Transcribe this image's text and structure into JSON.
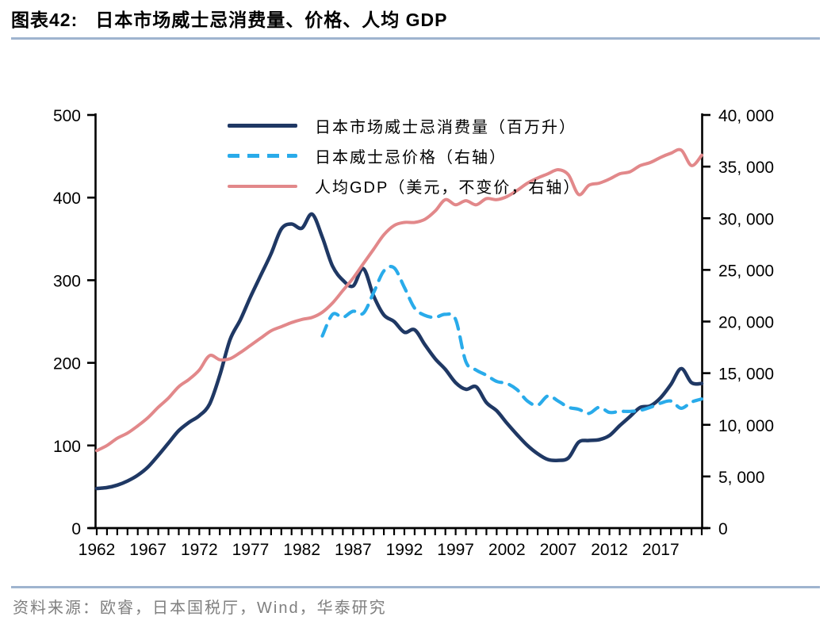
{
  "page": {
    "header": {
      "prefix": "图表42:",
      "title": "日本市场威士忌消费量、价格、人均 GDP"
    },
    "footer": {
      "source": "资料来源：欧睿，日本国税厅，Wind，华泰研究",
      "source_color": "#7f7f7f"
    },
    "rule_color": "#9fb4cf"
  },
  "chart_data": {
    "type": "line",
    "title": "日本市场威士忌消费量、价格、人均GDP",
    "x_axis": {
      "min": 1962,
      "max": 2021,
      "interval": 1,
      "major_tick_labels": [
        "1962",
        "1967",
        "1972",
        "1977",
        "1982",
        "1987",
        "1992",
        "1997",
        "2002",
        "2007",
        "2012",
        "2017"
      ],
      "major_tick_years": [
        1962,
        1967,
        1972,
        1977,
        1982,
        1987,
        1992,
        1997,
        2002,
        2007,
        2012,
        2017
      ]
    },
    "left_axis": {
      "min": 0,
      "max": 500,
      "step": 100,
      "tick_labels": [
        "0",
        "100",
        "200",
        "300",
        "400",
        "500"
      ]
    },
    "right_axis": {
      "min": 0,
      "max": 40000,
      "step": 5000,
      "tick_labels": [
        "0",
        "5, 000",
        "10, 000",
        "15, 000",
        "20, 000",
        "25, 000",
        "30, 000",
        "35, 000",
        "40, 000"
      ]
    },
    "grid": "off",
    "legend_position": "top-left-inside",
    "series": [
      {
        "name": "日本市场威士忌消费量（百万升）",
        "axis": "left",
        "color": "#1f3864",
        "style": "solid",
        "line_width": 4.5,
        "year_start": 1962,
        "values": [
          48,
          49,
          52,
          57,
          64,
          74,
          88,
          103,
          118,
          128,
          136,
          150,
          185,
          228,
          252,
          280,
          306,
          332,
          362,
          368,
          363,
          380,
          352,
          317,
          300,
          293,
          314,
          281,
          258,
          250,
          237,
          240,
          222,
          205,
          192,
          176,
          168,
          171,
          152,
          142,
          127,
          113,
          100,
          90,
          83,
          82,
          85,
          104,
          106,
          107,
          112,
          124,
          135,
          146,
          148,
          158,
          174,
          193,
          176,
          175
        ]
      },
      {
        "name": "日本威士忌价格（右轴）",
        "axis": "right",
        "color": "#29abea",
        "style": "dashed",
        "line_width": 4.2,
        "year_start": 1984,
        "values": [
          18600,
          20700,
          20400,
          21000,
          20800,
          22800,
          24900,
          25200,
          23300,
          21300,
          20600,
          20400,
          20700,
          20200,
          16100,
          15300,
          14800,
          14200,
          14000,
          13400,
          12300,
          11900,
          12800,
          12300,
          11700,
          11500,
          11100,
          11700,
          11200,
          11300,
          11300,
          11400,
          11700,
          12100,
          12300,
          11600,
          12200,
          12500
        ]
      },
      {
        "name": "人均GDP（美元，不变价，右轴）",
        "axis": "right",
        "color": "#e2888a",
        "style": "solid",
        "line_width": 4.0,
        "year_start": 1962,
        "values": [
          7500,
          8000,
          8700,
          9200,
          9900,
          10700,
          11700,
          12600,
          13700,
          14400,
          15300,
          16700,
          16300,
          16400,
          17000,
          17700,
          18400,
          19100,
          19500,
          19900,
          20200,
          20400,
          20900,
          21800,
          23000,
          24200,
          25600,
          27000,
          28400,
          29300,
          29600,
          29600,
          29900,
          30700,
          31800,
          31300,
          31700,
          31300,
          31900,
          31800,
          32100,
          32700,
          33400,
          33900,
          34300,
          34700,
          34200,
          32300,
          33200,
          33400,
          33800,
          34300,
          34500,
          35100,
          35400,
          35900,
          36300,
          36600,
          35100,
          36100
        ]
      }
    ]
  }
}
